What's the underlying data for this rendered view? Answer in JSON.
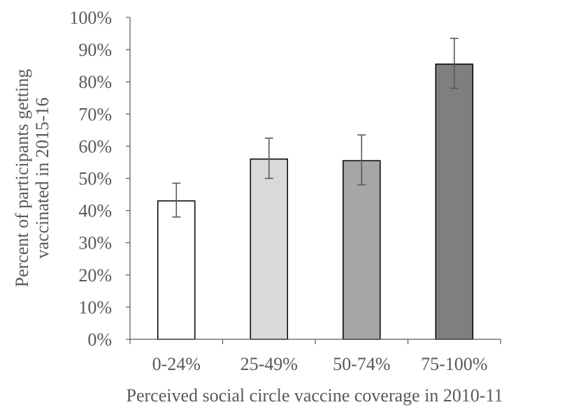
{
  "chart_data": {
    "type": "bar",
    "categories": [
      "0-24%",
      "25-49%",
      "50-74%",
      "75-100%"
    ],
    "values": [
      43,
      56,
      55.5,
      85.5
    ],
    "error_bars": [
      {
        "low": 38,
        "high": 48.5
      },
      {
        "low": 50,
        "high": 62.5
      },
      {
        "low": 48,
        "high": 63.5
      },
      {
        "low": 78,
        "high": 93.5
      }
    ],
    "bar_colors": [
      "#ffffff",
      "#d9d9d9",
      "#a6a6a6",
      "#7f7f7f"
    ],
    "xlabel": "Perceived social circle vaccine coverage in 2010-11",
    "ylabel_lines": [
      "Percent of participants getting",
      "vaccinated in 2015-16"
    ],
    "ylim": [
      0,
      100
    ],
    "yticks": [
      0,
      10,
      20,
      30,
      40,
      50,
      60,
      70,
      80,
      90,
      100
    ],
    "ytick_labels": [
      "0%",
      "10%",
      "20%",
      "30%",
      "40%",
      "50%",
      "60%",
      "70%",
      "80%",
      "90%",
      "100%"
    ],
    "grid": false,
    "legend": "none",
    "colors": {
      "axis": "#595959",
      "bar_outline": "#000000",
      "error_bar": "#595959"
    }
  }
}
